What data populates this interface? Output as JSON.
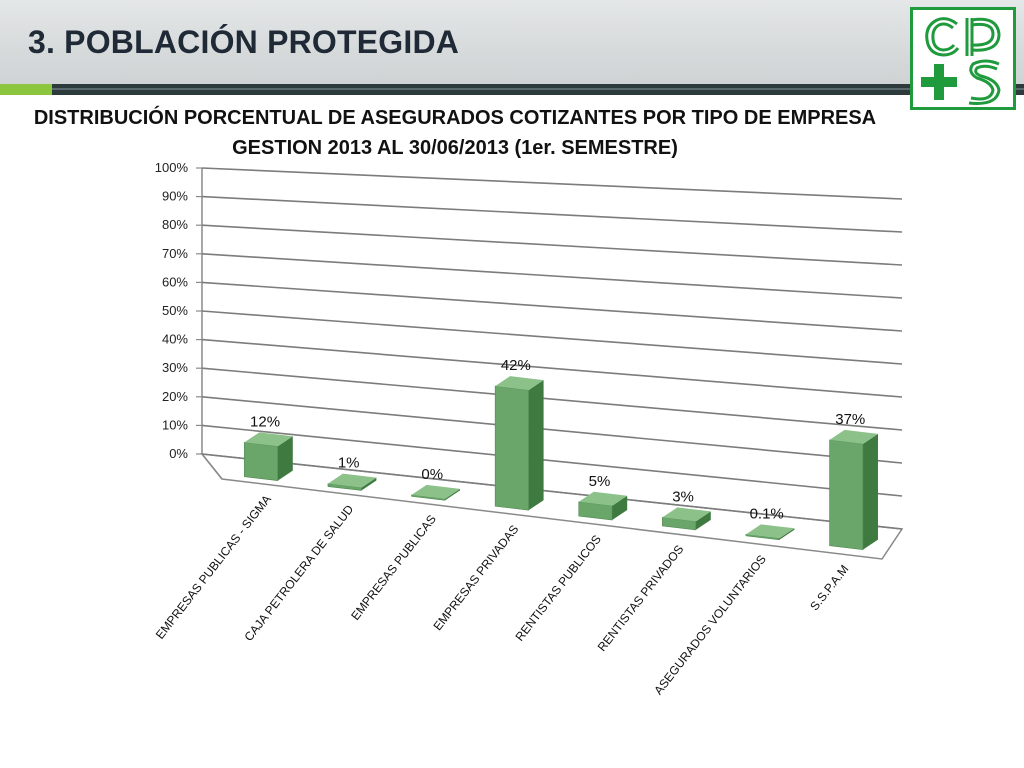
{
  "slide": {
    "title": "3. POBLACIÓN PROTEGIDA",
    "logo_text": "cps"
  },
  "colors": {
    "accent_light": "#8cc63f",
    "accent_dark": "#2e3b3d",
    "bar_front": "#6aa56a",
    "bar_side": "#3f7a41",
    "bar_top": "#8cc28a",
    "logo_green": "#1f9a3c"
  },
  "chart_data": {
    "type": "bar",
    "style": "3d-perspective",
    "title": "DISTRIBUCIÓN PORCENTUAL DE ASEGURADOS  COTIZANTES POR TIPO DE EMPRESA",
    "subtitle": "GESTION 2013 AL 30/06/2013 (1er. SEMESTRE)",
    "categories": [
      "EMPRESAS PUBLICAS - SIGMA",
      "CAJA PETROLERA DE SALUD",
      "EMPRESAS PUBLICAS",
      "EMPRESAS PRIVADAS",
      "RENTISTAS PUBLICOS",
      "RENTISTAS PRIVADOS",
      "ASEGURADOS VOLUNTARIOS",
      "S.S.P.A.M"
    ],
    "values": [
      12,
      1,
      0,
      42,
      5,
      3,
      0.1,
      37
    ],
    "data_labels": [
      "12%",
      "1%",
      "0%",
      "42%",
      "5%",
      "3%",
      "0.1%",
      "37%"
    ],
    "y_ticks": [
      "0%",
      "10%",
      "20%",
      "30%",
      "40%",
      "50%",
      "60%",
      "70%",
      "80%",
      "90%",
      "100%"
    ],
    "ylim": [
      0,
      100
    ],
    "grid": true,
    "legend": "none"
  }
}
